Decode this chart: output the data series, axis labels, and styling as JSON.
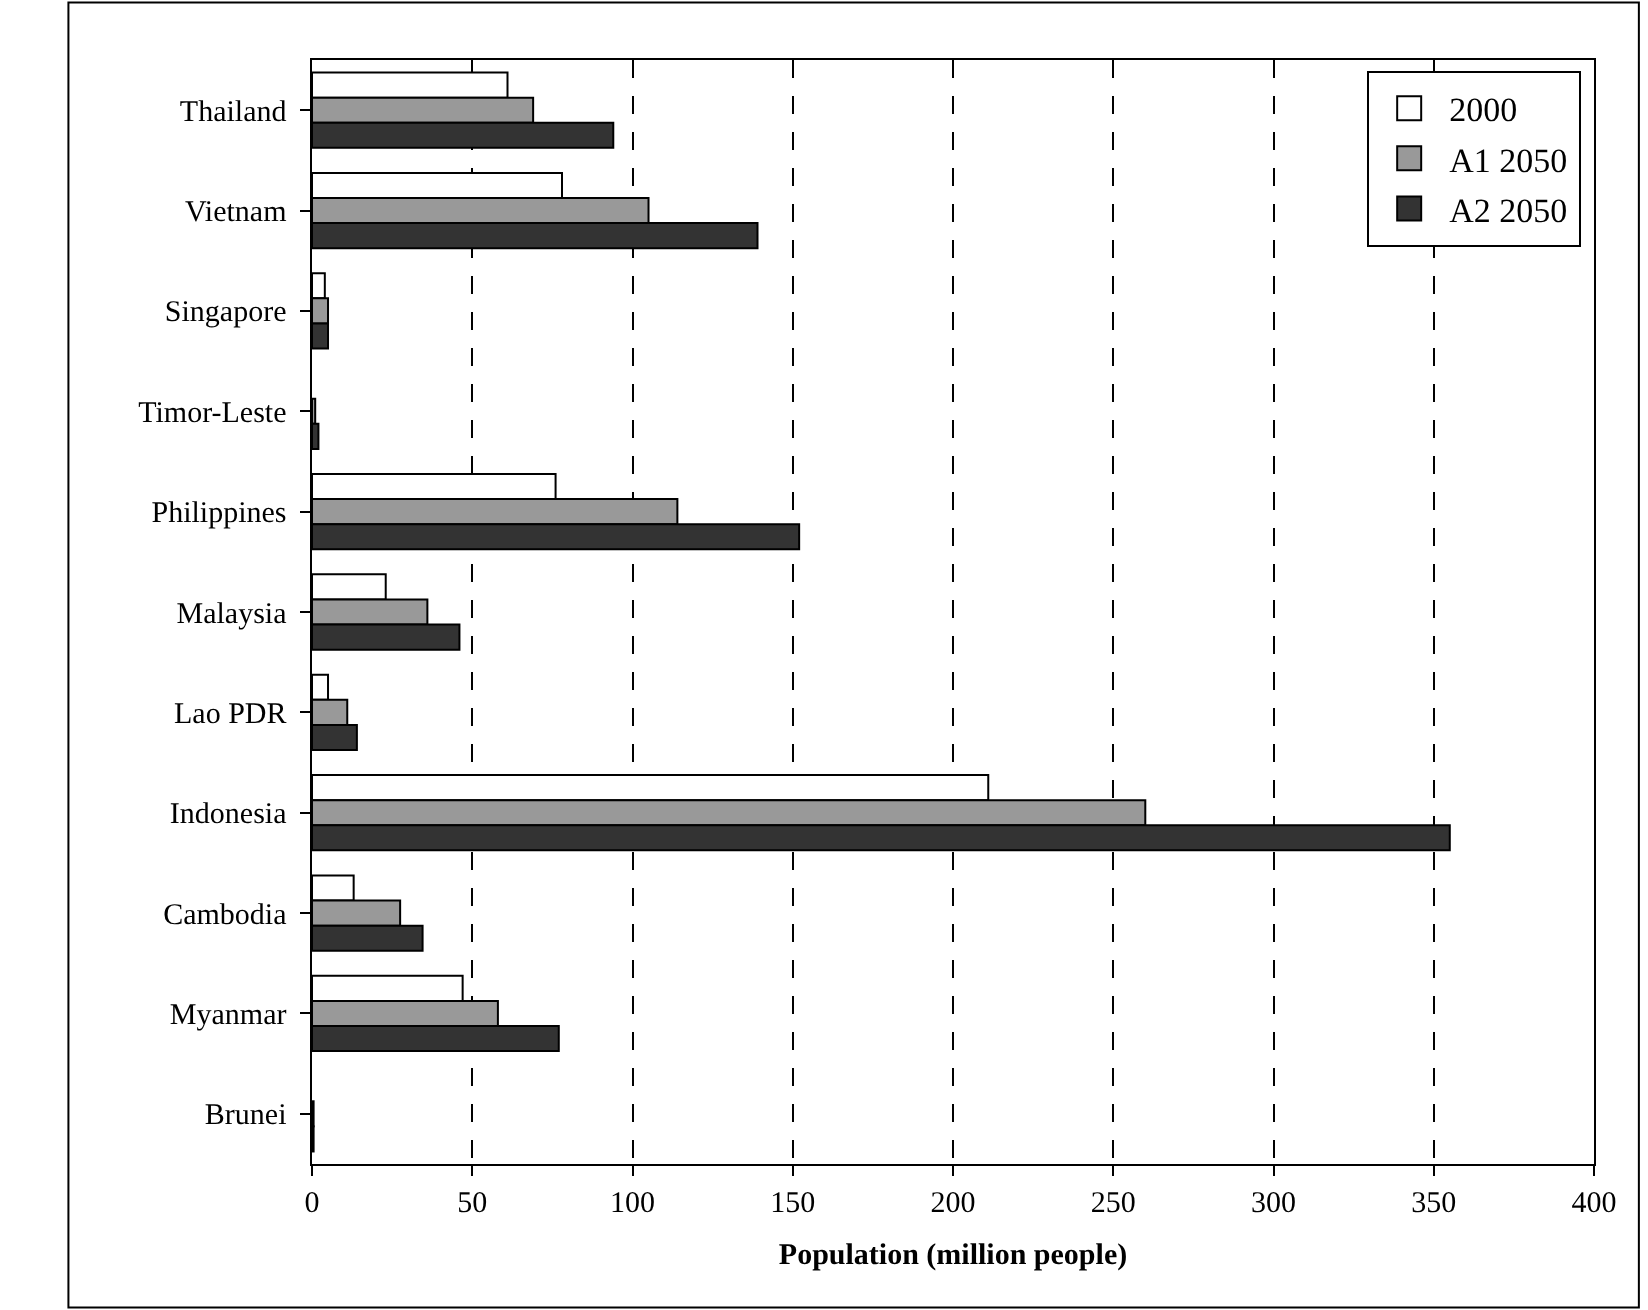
{
  "chart_data": {
    "type": "bar",
    "orientation": "horizontal",
    "xlabel": "Population (million people)",
    "categories": [
      "Thailand",
      "Vietnam",
      "Singapore",
      "Timor-Leste",
      "Philippines",
      "Malaysia",
      "Lao PDR",
      "Indonesia",
      "Cambodia",
      "Myanmar",
      "Brunei"
    ],
    "series": [
      {
        "name": "2000",
        "color": "#ffffff",
        "values": [
          61,
          78,
          4,
          null,
          76,
          23,
          5,
          211,
          13,
          47,
          null
        ]
      },
      {
        "name": "A1 2050",
        "color": "#999999",
        "values": [
          69,
          105,
          5,
          1,
          114,
          36,
          11,
          260,
          27.5,
          58,
          0.5
        ]
      },
      {
        "name": "A2 2050",
        "color": "#333333",
        "values": [
          94,
          139,
          5,
          2,
          152,
          46,
          14,
          355,
          34.5,
          77,
          0.5
        ]
      }
    ],
    "xlim": [
      0,
      400
    ],
    "xticks": [
      0,
      50,
      100,
      150,
      200,
      250,
      300,
      350,
      400
    ],
    "grid": "x",
    "legend": "top right"
  }
}
